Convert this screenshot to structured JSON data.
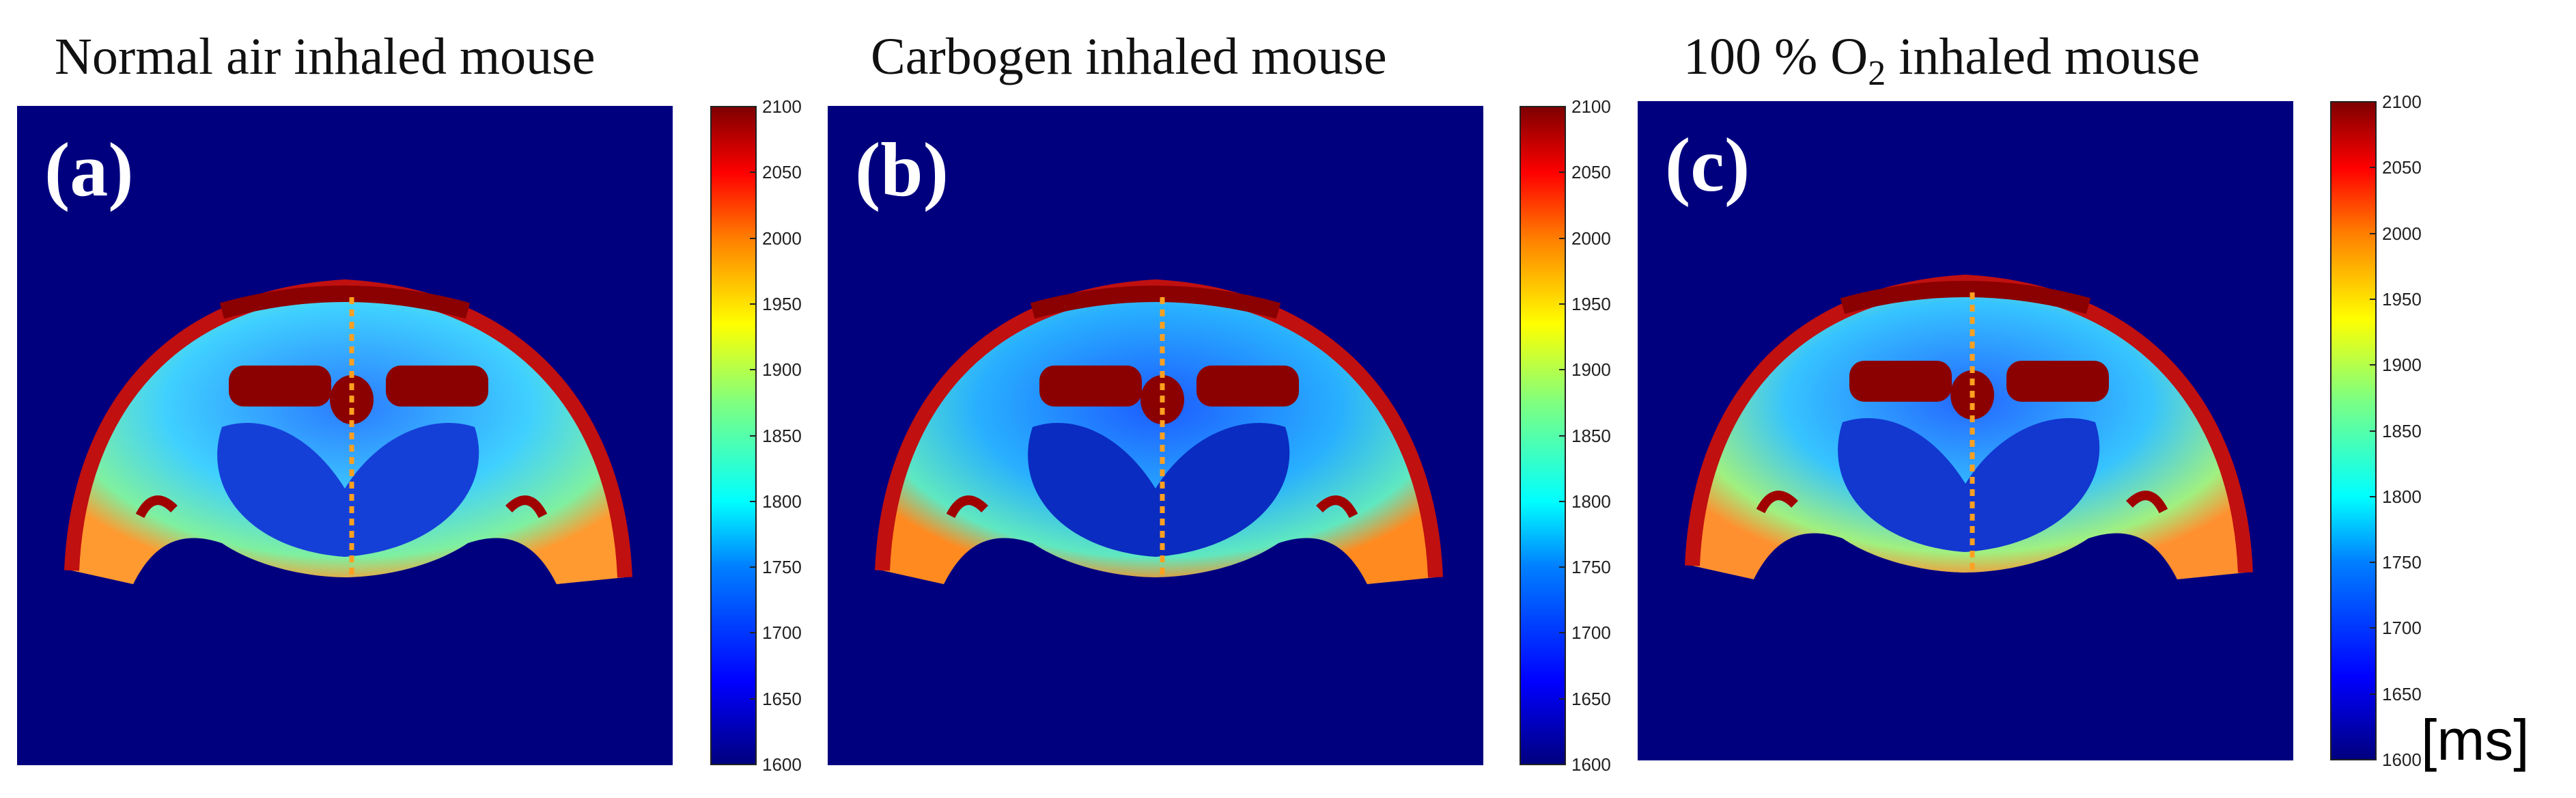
{
  "panels": [
    {
      "title": "Normal air inhaled mouse",
      "letter": "(a)"
    },
    {
      "title": "Carbogen inhaled mouse",
      "letter": "(b)"
    },
    {
      "title_parts": {
        "prefix": "100 % O",
        "subscript": "2",
        "suffix": " inhaled mouse"
      },
      "letter": "(c)"
    }
  ],
  "colorbar": {
    "ticks": [
      "2100",
      "2050",
      "2000",
      "1950",
      "1900",
      "1850",
      "1800",
      "1750",
      "1700",
      "1650",
      "1600"
    ],
    "min": 1600,
    "max": 2100,
    "colormap": "jet"
  },
  "unit": "[ms]",
  "colors": {
    "background_blue": "#00007f",
    "brain_red": "#8b0000"
  }
}
